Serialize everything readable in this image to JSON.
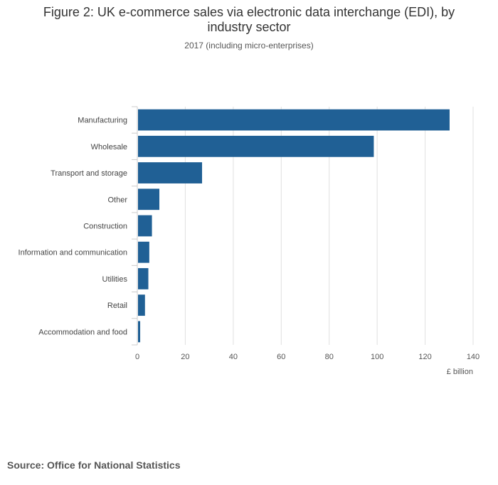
{
  "chart_data": {
    "type": "bar",
    "orientation": "horizontal",
    "title": "Figure 2: UK e-commerce sales via electronic data interchange (EDI), by industry sector",
    "subtitle": "2017 (including micro-enterprises)",
    "categories": [
      "Manufacturing",
      "Wholesale",
      "Transport and storage",
      "Other",
      "Construction",
      "Information and communication",
      "Utilities",
      "Retail",
      "Accommodation and food"
    ],
    "values": [
      130.2,
      98.6,
      27,
      9.2,
      6.1,
      5,
      4.6,
      3.2,
      1.2
    ],
    "xlim": [
      0,
      140
    ],
    "xticks": [
      0,
      20,
      40,
      60,
      80,
      100,
      120,
      140
    ],
    "xlabel": "£ billion",
    "ylabel": "",
    "grid": "vertical",
    "legend": "none",
    "bar_color": "#206095"
  },
  "source": "Source: Office for National Statistics"
}
